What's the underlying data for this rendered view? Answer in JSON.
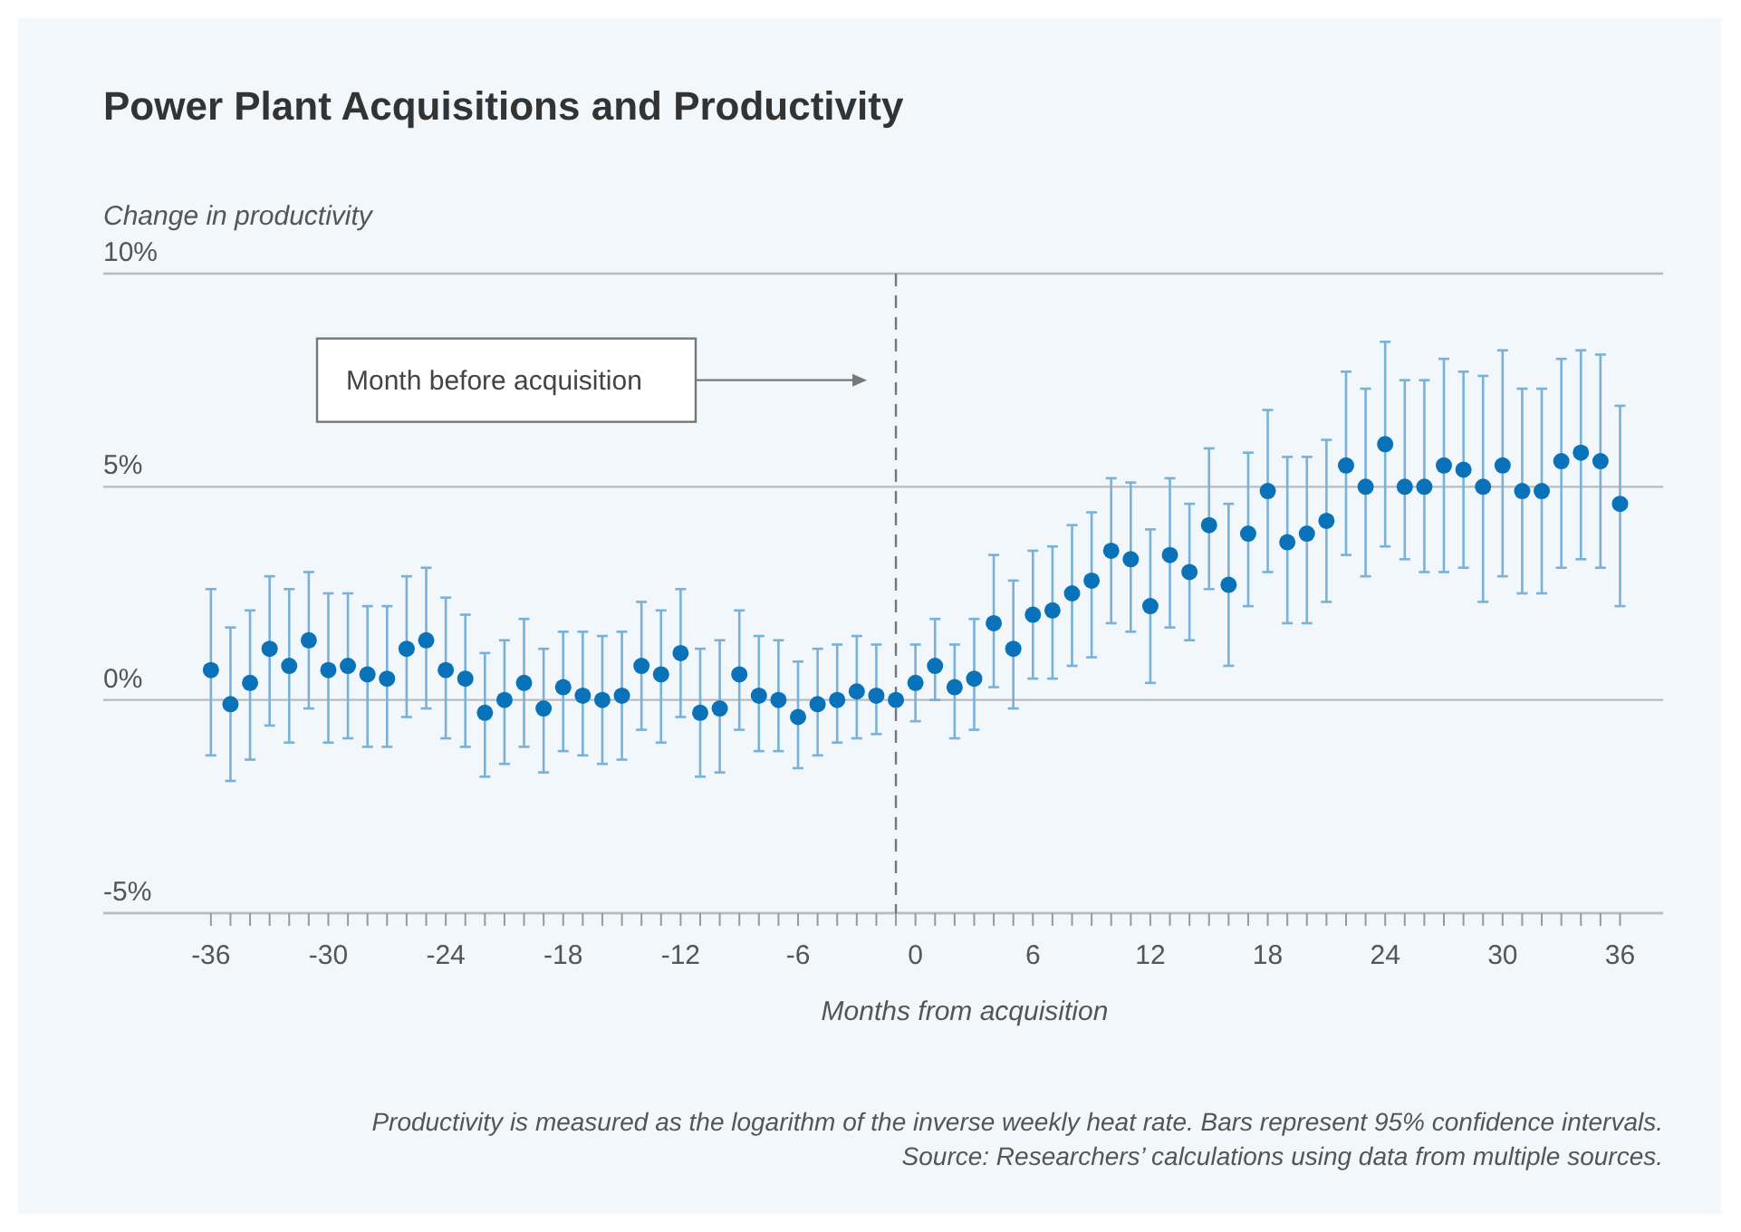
{
  "chart_data": {
    "type": "scatter",
    "title": "Power Plant Acquisitions and Productivity",
    "xlabel": "Months from acquisition",
    "ylabel": "Change in productivity",
    "x": [
      -36,
      -35,
      -34,
      -33,
      -32,
      -31,
      -30,
      -29,
      -28,
      -27,
      -26,
      -25,
      -24,
      -23,
      -22,
      -21,
      -20,
      -19,
      -18,
      -17,
      -16,
      -15,
      -14,
      -13,
      -12,
      -11,
      -10,
      -9,
      -8,
      -7,
      -6,
      -5,
      -4,
      -3,
      -2,
      -1,
      0,
      1,
      2,
      3,
      4,
      5,
      6,
      7,
      8,
      9,
      10,
      11,
      12,
      13,
      14,
      15,
      16,
      17,
      18,
      19,
      20,
      21,
      22,
      23,
      24,
      25,
      26,
      27,
      28,
      29,
      30,
      31,
      32,
      33,
      34,
      35,
      36
    ],
    "series": [
      {
        "color": "#0a72b9",
        "values": [
          0.7,
          -0.1,
          0.4,
          1.2,
          0.8,
          1.4,
          0.7,
          0.8,
          0.6,
          0.5,
          1.2,
          1.4,
          0.7,
          0.5,
          -0.3,
          0.0,
          0.4,
          -0.2,
          0.3,
          0.1,
          0.0,
          0.1,
          0.8,
          0.6,
          1.1,
          -0.3,
          -0.2,
          0.6,
          0.1,
          0.0,
          -0.4,
          -0.1,
          0.0,
          0.2,
          0.1,
          0.0,
          0.4,
          0.8,
          0.3,
          0.5,
          1.8,
          1.2,
          2.0,
          2.1,
          2.5,
          2.8,
          3.5,
          3.3,
          2.2,
          3.4,
          3.0,
          4.1,
          2.7,
          3.9,
          4.9,
          3.7,
          3.9,
          4.2,
          5.5,
          5.0,
          6.0,
          5.0,
          5.0,
          5.5,
          5.4,
          5.0,
          5.5,
          4.9,
          4.9,
          5.6,
          5.8,
          5.6,
          4.6
        ],
        "errors": [
          [
            -1.3,
            2.6
          ],
          [
            -1.9,
            1.7
          ],
          [
            -1.4,
            2.1
          ],
          [
            -0.6,
            2.9
          ],
          [
            -1.0,
            2.6
          ],
          [
            -0.2,
            3.0
          ],
          [
            -1.0,
            2.5
          ],
          [
            -0.9,
            2.5
          ],
          [
            -1.1,
            2.2
          ],
          [
            -1.1,
            2.2
          ],
          [
            -0.4,
            2.9
          ],
          [
            -0.2,
            3.1
          ],
          [
            -0.9,
            2.4
          ],
          [
            -1.1,
            2.0
          ],
          [
            -1.8,
            1.1
          ],
          [
            -1.5,
            1.4
          ],
          [
            -1.1,
            1.9
          ],
          [
            -1.7,
            1.2
          ],
          [
            -1.2,
            1.6
          ],
          [
            -1.3,
            1.6
          ],
          [
            -1.5,
            1.5
          ],
          [
            -1.4,
            1.6
          ],
          [
            -0.7,
            2.3
          ],
          [
            -1.0,
            2.1
          ],
          [
            -0.4,
            2.6
          ],
          [
            -1.8,
            1.2
          ],
          [
            -1.7,
            1.4
          ],
          [
            -0.7,
            2.1
          ],
          [
            -1.2,
            1.5
          ],
          [
            -1.2,
            1.4
          ],
          [
            -1.6,
            0.9
          ],
          [
            -1.3,
            1.2
          ],
          [
            -1.0,
            1.3
          ],
          [
            -0.9,
            1.5
          ],
          [
            -0.8,
            1.3
          ],
          null,
          [
            -0.5,
            1.3
          ],
          [
            0.0,
            1.9
          ],
          [
            -0.9,
            1.3
          ],
          [
            -0.7,
            1.9
          ],
          [
            0.3,
            3.4
          ],
          [
            -0.2,
            2.8
          ],
          [
            0.5,
            3.5
          ],
          [
            0.5,
            3.6
          ],
          [
            0.8,
            4.1
          ],
          [
            1.0,
            4.4
          ],
          [
            1.8,
            5.2
          ],
          [
            1.6,
            5.1
          ],
          [
            0.4,
            4.0
          ],
          [
            1.7,
            5.2
          ],
          [
            1.4,
            4.6
          ],
          [
            2.6,
            5.9
          ],
          [
            0.8,
            4.6
          ],
          [
            2.2,
            5.8
          ],
          [
            3.0,
            6.8
          ],
          [
            1.8,
            5.7
          ],
          [
            1.8,
            5.7
          ],
          [
            2.3,
            6.1
          ],
          [
            3.4,
            7.7
          ],
          [
            2.9,
            7.3
          ],
          [
            3.6,
            8.4
          ],
          [
            3.3,
            7.5
          ],
          [
            3.0,
            7.5
          ],
          [
            3.0,
            8.0
          ],
          [
            3.1,
            7.7
          ],
          [
            2.3,
            7.6
          ],
          [
            2.9,
            8.2
          ],
          [
            2.5,
            7.3
          ],
          [
            2.5,
            7.3
          ],
          [
            3.1,
            8.0
          ],
          [
            3.3,
            8.2
          ],
          [
            3.1,
            8.1
          ],
          [
            2.2,
            6.9
          ]
        ]
      }
    ],
    "xlim": [
      -41.5,
      38.2
    ],
    "xticks": [
      -36,
      {
        "value": -35,
        "label": null
      },
      {
        "value": -34,
        "label": null
      },
      {
        "value": -33,
        "label": null
      },
      {
        "value": -32,
        "label": null
      },
      {
        "value": -31,
        "label": null
      },
      -30,
      {
        "value": -29,
        "label": null
      },
      {
        "value": -28,
        "label": null
      },
      {
        "value": -27,
        "label": null
      },
      {
        "value": -26,
        "label": null
      },
      {
        "value": -25,
        "label": null
      },
      -24,
      {
        "value": -23,
        "label": null
      },
      {
        "value": -22,
        "label": null
      },
      {
        "value": -21,
        "label": null
      },
      {
        "value": -20,
        "label": null
      },
      {
        "value": -19,
        "label": null
      },
      -18,
      {
        "value": -17,
        "label": null
      },
      {
        "value": -16,
        "label": null
      },
      {
        "value": -15,
        "label": null
      },
      {
        "value": -14,
        "label": null
      },
      {
        "value": -13,
        "label": null
      },
      -12,
      {
        "value": -11,
        "label": null
      },
      {
        "value": -10,
        "label": null
      },
      {
        "value": -9,
        "label": null
      },
      {
        "value": -8,
        "label": null
      },
      {
        "value": -7,
        "label": null
      },
      -6,
      {
        "value": -5,
        "label": null
      },
      {
        "value": -4,
        "label": null
      },
      {
        "value": -3,
        "label": null
      },
      {
        "value": -2,
        "label": null
      },
      {
        "value": -1,
        "label": null
      },
      0,
      {
        "value": 1,
        "label": null
      },
      {
        "value": 2,
        "label": null
      },
      {
        "value": 3,
        "label": null
      },
      {
        "value": 4,
        "label": null
      },
      {
        "value": 5,
        "label": null
      },
      6,
      {
        "value": 7,
        "label": null
      },
      {
        "value": 8,
        "label": null
      },
      {
        "value": 9,
        "label": null
      },
      {
        "value": 10,
        "label": null
      },
      {
        "value": 11,
        "label": null
      },
      12,
      {
        "value": 13,
        "label": null
      },
      {
        "value": 14,
        "label": null
      },
      {
        "value": 15,
        "label": null
      },
      {
        "value": 16,
        "label": null
      },
      {
        "value": 17,
        "label": null
      },
      18,
      {
        "value": 19,
        "label": null
      },
      {
        "value": 20,
        "label": null
      },
      {
        "value": 21,
        "label": null
      },
      {
        "value": 22,
        "label": null
      },
      {
        "value": 23,
        "label": null
      },
      24,
      {
        "value": 25,
        "label": null
      },
      {
        "value": 26,
        "label": null
      },
      {
        "value": 27,
        "label": null
      },
      {
        "value": 28,
        "label": null
      },
      {
        "value": 29,
        "label": null
      },
      30,
      {
        "value": 31,
        "label": null
      },
      {
        "value": 32,
        "label": null
      },
      {
        "value": 33,
        "label": null
      },
      {
        "value": 34,
        "label": null
      },
      {
        "value": 35,
        "label": null
      },
      36
    ],
    "ylim": [
      -5,
      10
    ],
    "yticks": [
      {
        "value": -5,
        "label": "-5%"
      },
      {
        "value": 0,
        "label": "0%"
      },
      {
        "value": 5,
        "label": "5%"
      },
      {
        "value": 10,
        "label": "10%"
      }
    ],
    "grid": "y",
    "marker": "circle",
    "ref_lines": [
      {
        "axis": "x",
        "value": -1,
        "color": "#777777",
        "line_style": "dashed"
      }
    ],
    "annotations": [
      "Month before acquisition",
      "Productivity is measured as the logarithm of the inverse weekly heat rate. Bars represent 95% confidence intervals.",
      "Source: Researchers’ calculations using data from multiple sources."
    ]
  }
}
